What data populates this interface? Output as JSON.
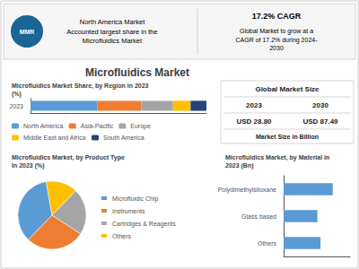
{
  "title": "Microfluidics Market",
  "annotations": [
    "MMR",
    "North America Market\nAccounted largest share in the\nMicrofluidics Market",
    "17.2% CAGR",
    "Global Market to grow at a\nCAGR of 17.2% during 2024-\n2030",
    "Global Market Size",
    "2023",
    "2030",
    "USD 28.80",
    "USD 87.49",
    "Market Size in Billion"
  ],
  "chart_data": [
    {
      "type": "bar",
      "title": "Microfluidics Market Share, by Region in 2023\n(%)",
      "orientation": "horizontal",
      "stacked": true,
      "categories": [
        "2023"
      ],
      "series": [
        {
          "name": "North America",
          "color": "#5b9bd5",
          "values": [
            38
          ]
        },
        {
          "name": "Asia-Pacific",
          "color": "#ed7d31",
          "values": [
            25
          ]
        },
        {
          "name": "Europe",
          "color": "#a5a5a5",
          "values": [
            18
          ]
        },
        {
          "name": "Middle East and Africa",
          "color": "#ffc000",
          "values": [
            10
          ]
        },
        {
          "name": "South America",
          "color": "#264478",
          "values": [
            9
          ]
        }
      ],
      "xlim": [
        0,
        100
      ],
      "grid": false,
      "legend": "lower left",
      "tick_labels": "y"
    },
    {
      "type": "pie",
      "title": "Microfluidics Market, by Product Type\nIn 2023 (%)",
      "categories": [
        "Microfluidic Chip",
        "Instruments",
        "Cartridges & Reagents",
        "Others"
      ],
      "values": [
        35,
        28,
        22,
        15
      ],
      "colors": [
        "#5b9bd5",
        "#ed7d31",
        "#a5a5a5",
        "#ffc000"
      ],
      "legend": "right"
    },
    {
      "type": "bar",
      "title": "Microfluidics Market, by Material in\n2023 (Bn)",
      "orientation": "horizontal",
      "categories": [
        "Others",
        "Glass based",
        "Polydimethylsiloxane"
      ],
      "values": [
        12,
        11,
        16
      ],
      "color": "#5b9bd5",
      "xlim": [
        0,
        21.6
      ],
      "grid": false,
      "tick_labels": "y"
    }
  ]
}
